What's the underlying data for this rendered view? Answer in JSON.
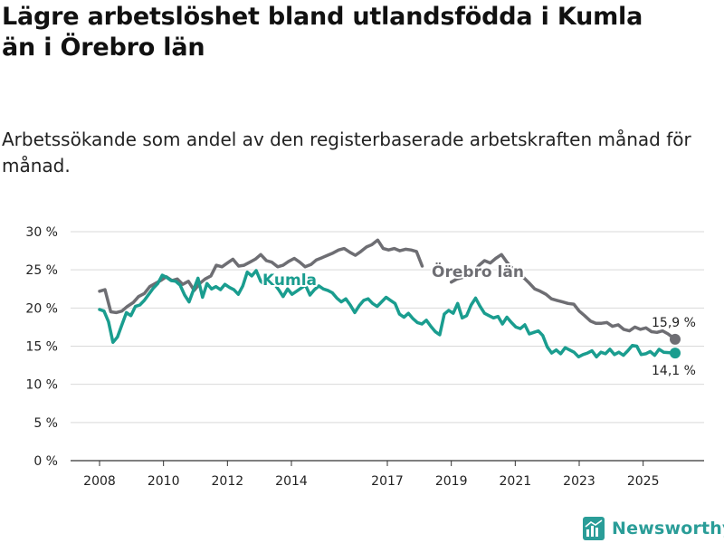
{
  "header": {
    "title": "Lägre arbetslöshet bland utlandsfödda i Kumla\nän i Örebro län",
    "subtitle": "Arbetssökande som andel av den registerbaserade arbetskraften månad för månad."
  },
  "brand": {
    "name": "Newsworthy",
    "color": "#2a9d98"
  },
  "chart_data": {
    "type": "line",
    "title": "Lägre arbetslöshet bland utlandsfödda i Kumla än i Örebro län",
    "subtitle": "Arbetssökande som andel av den registerbaserade arbetskraften månad för månad.",
    "xlabel": "",
    "ylabel": "",
    "xlim": [
      2008,
      2026.8
    ],
    "ylim": [
      0,
      30
    ],
    "grid": true,
    "y_ticks": [
      0,
      5,
      10,
      15,
      20,
      25,
      30
    ],
    "y_tick_labels": [
      "0 %",
      "5 %",
      "10 %",
      "15 %",
      "20 %",
      "25 %",
      "30 %"
    ],
    "x_ticks": [
      2008,
      2010,
      2012,
      2014,
      2017,
      2019,
      2021,
      2023,
      2025
    ],
    "x_tick_labels": [
      "2008",
      "2010",
      "2012",
      "2014",
      "2017",
      "2019",
      "2021",
      "2023",
      "2025"
    ],
    "series": [
      {
        "name": "Örebro län",
        "color": "#6e6e73",
        "end_label": "15,9 %",
        "points": [
          [
            2008.0,
            22.2
          ],
          [
            2008.17,
            22.4
          ],
          [
            2008.35,
            19.5
          ],
          [
            2008.52,
            19.4
          ],
          [
            2008.7,
            19.6
          ],
          [
            2008.87,
            20.2
          ],
          [
            2009.05,
            20.7
          ],
          [
            2009.22,
            21.5
          ],
          [
            2009.4,
            21.9
          ],
          [
            2009.57,
            22.8
          ],
          [
            2009.74,
            23.2
          ],
          [
            2009.91,
            23.6
          ],
          [
            2010.09,
            24.1
          ],
          [
            2010.26,
            23.6
          ],
          [
            2010.43,
            23.8
          ],
          [
            2010.6,
            23.1
          ],
          [
            2010.78,
            23.5
          ],
          [
            2010.96,
            22.3
          ],
          [
            2011.13,
            23.2
          ],
          [
            2011.3,
            23.8
          ],
          [
            2011.48,
            24.2
          ],
          [
            2011.65,
            25.6
          ],
          [
            2011.83,
            25.4
          ],
          [
            2012.0,
            25.9
          ],
          [
            2012.17,
            26.4
          ],
          [
            2012.35,
            25.5
          ],
          [
            2012.52,
            25.6
          ],
          [
            2012.7,
            26.0
          ],
          [
            2012.87,
            26.4
          ],
          [
            2013.04,
            27.0
          ],
          [
            2013.22,
            26.2
          ],
          [
            2013.39,
            26.0
          ],
          [
            2013.57,
            25.4
          ],
          [
            2013.74,
            25.6
          ],
          [
            2013.91,
            26.1
          ],
          [
            2014.09,
            26.5
          ],
          [
            2014.26,
            26.0
          ],
          [
            2014.43,
            25.4
          ],
          [
            2014.61,
            25.7
          ],
          [
            2014.78,
            26.3
          ],
          [
            2014.96,
            26.6
          ],
          [
            2015.13,
            26.9
          ],
          [
            2015.3,
            27.2
          ],
          [
            2015.48,
            27.6
          ],
          [
            2015.65,
            27.8
          ],
          [
            2015.83,
            27.3
          ],
          [
            2016.0,
            26.9
          ],
          [
            2016.17,
            27.4
          ],
          [
            2016.35,
            28.0
          ],
          [
            2016.52,
            28.3
          ],
          [
            2016.7,
            28.9
          ],
          [
            2016.87,
            27.8
          ],
          [
            2017.04,
            27.6
          ],
          [
            2017.22,
            27.8
          ],
          [
            2017.39,
            27.5
          ],
          [
            2017.57,
            27.7
          ],
          [
            2017.74,
            27.6
          ],
          [
            2017.91,
            27.4
          ],
          [
            2018.09,
            25.5
          ]
        ],
        "points_after_label": [
          [
            2019.0,
            23.4
          ],
          [
            2019.17,
            23.8
          ],
          [
            2019.35,
            24.0
          ],
          [
            2019.52,
            24.6
          ],
          [
            2019.7,
            24.8
          ],
          [
            2019.87,
            25.6
          ],
          [
            2020.04,
            26.2
          ],
          [
            2020.22,
            25.9
          ],
          [
            2020.39,
            26.5
          ],
          [
            2020.57,
            27.0
          ],
          [
            2020.74,
            26.0
          ],
          [
            2020.91,
            25.2
          ],
          [
            2021.09,
            24.5
          ],
          [
            2021.26,
            24.0
          ],
          [
            2021.43,
            23.3
          ],
          [
            2021.61,
            22.5
          ],
          [
            2021.78,
            22.2
          ],
          [
            2021.96,
            21.8
          ],
          [
            2022.13,
            21.2
          ],
          [
            2022.3,
            21.0
          ],
          [
            2022.48,
            20.8
          ],
          [
            2022.65,
            20.6
          ],
          [
            2022.83,
            20.5
          ],
          [
            2023.0,
            19.6
          ],
          [
            2023.17,
            19.0
          ],
          [
            2023.35,
            18.3
          ],
          [
            2023.52,
            18.0
          ],
          [
            2023.7,
            18.0
          ],
          [
            2023.87,
            18.1
          ],
          [
            2024.04,
            17.6
          ],
          [
            2024.22,
            17.8
          ],
          [
            2024.39,
            17.2
          ],
          [
            2024.57,
            17.0
          ],
          [
            2024.74,
            17.5
          ],
          [
            2024.91,
            17.2
          ],
          [
            2025.09,
            17.4
          ],
          [
            2025.26,
            16.9
          ],
          [
            2025.43,
            16.8
          ],
          [
            2025.61,
            17.0
          ],
          [
            2025.78,
            16.6
          ],
          [
            2026.0,
            15.9
          ]
        ]
      },
      {
        "name": "Kumla",
        "color": "#1a9d8f",
        "end_label": "14,1 %",
        "points": [
          [
            2008.0,
            19.8
          ],
          [
            2008.14,
            19.6
          ],
          [
            2008.28,
            18.2
          ],
          [
            2008.42,
            15.5
          ],
          [
            2008.56,
            16.2
          ],
          [
            2008.7,
            17.8
          ],
          [
            2008.84,
            19.4
          ],
          [
            2008.98,
            19.0
          ],
          [
            2009.12,
            20.2
          ],
          [
            2009.26,
            20.4
          ],
          [
            2009.4,
            21.0
          ],
          [
            2009.54,
            21.8
          ],
          [
            2009.68,
            22.6
          ],
          [
            2009.82,
            23.2
          ],
          [
            2009.96,
            24.3
          ],
          [
            2010.1,
            24.0
          ],
          [
            2010.24,
            23.6
          ],
          [
            2010.38,
            23.5
          ],
          [
            2010.52,
            23.0
          ],
          [
            2010.66,
            21.7
          ],
          [
            2010.8,
            20.8
          ],
          [
            2010.94,
            22.4
          ],
          [
            2011.08,
            23.9
          ],
          [
            2011.22,
            21.4
          ],
          [
            2011.36,
            23.2
          ],
          [
            2011.5,
            22.5
          ],
          [
            2011.64,
            22.8
          ],
          [
            2011.78,
            22.4
          ],
          [
            2011.92,
            23.1
          ],
          [
            2012.06,
            22.7
          ],
          [
            2012.2,
            22.4
          ],
          [
            2012.34,
            21.8
          ],
          [
            2012.48,
            22.9
          ],
          [
            2012.62,
            24.7
          ],
          [
            2012.76,
            24.2
          ],
          [
            2012.9,
            24.9
          ],
          [
            2013.04,
            23.5
          ],
          [
            2013.18,
            23.0
          ],
          [
            2013.32,
            23.7
          ],
          [
            2013.46,
            23.2
          ],
          [
            2013.6,
            22.4
          ],
          [
            2013.74,
            21.5
          ],
          [
            2013.88,
            22.5
          ],
          [
            2014.02,
            21.8
          ],
          [
            2014.16,
            22.2
          ],
          [
            2014.3,
            22.6
          ],
          [
            2014.44,
            23.0
          ],
          [
            2014.58,
            21.7
          ],
          [
            2014.72,
            22.4
          ],
          [
            2014.86,
            22.9
          ],
          [
            2015.0,
            22.5
          ],
          [
            2015.14,
            22.3
          ],
          [
            2015.28,
            22.0
          ],
          [
            2015.42,
            21.3
          ],
          [
            2015.56,
            20.8
          ],
          [
            2015.7,
            21.2
          ],
          [
            2015.84,
            20.4
          ],
          [
            2015.98,
            19.4
          ],
          [
            2016.12,
            20.3
          ],
          [
            2016.26,
            21.0
          ],
          [
            2016.4,
            21.2
          ],
          [
            2016.54,
            20.6
          ],
          [
            2016.68,
            20.2
          ],
          [
            2016.82,
            20.8
          ],
          [
            2016.96,
            21.4
          ],
          [
            2017.1,
            21.0
          ],
          [
            2017.24,
            20.6
          ],
          [
            2017.38,
            19.2
          ],
          [
            2017.52,
            18.8
          ],
          [
            2017.66,
            19.3
          ],
          [
            2017.8,
            18.6
          ],
          [
            2017.94,
            18.1
          ],
          [
            2018.08,
            17.9
          ],
          [
            2018.22,
            18.4
          ],
          [
            2018.36,
            17.6
          ],
          [
            2018.5,
            16.9
          ],
          [
            2018.64,
            16.5
          ],
          [
            2018.78,
            19.2
          ],
          [
            2018.92,
            19.7
          ],
          [
            2019.06,
            19.3
          ],
          [
            2019.2,
            20.6
          ],
          [
            2019.34,
            18.7
          ],
          [
            2019.48,
            19.0
          ],
          [
            2019.62,
            20.4
          ],
          [
            2019.76,
            21.3
          ],
          [
            2019.9,
            20.2
          ],
          [
            2020.04,
            19.3
          ],
          [
            2020.18,
            19.0
          ],
          [
            2020.32,
            18.7
          ],
          [
            2020.46,
            18.9
          ],
          [
            2020.6,
            17.9
          ],
          [
            2020.74,
            18.8
          ],
          [
            2020.88,
            18.1
          ],
          [
            2021.02,
            17.5
          ],
          [
            2021.16,
            17.3
          ],
          [
            2021.3,
            17.8
          ],
          [
            2021.44,
            16.6
          ],
          [
            2021.58,
            16.8
          ],
          [
            2021.72,
            17.0
          ],
          [
            2021.86,
            16.4
          ],
          [
            2022.0,
            14.9
          ],
          [
            2022.14,
            14.1
          ],
          [
            2022.28,
            14.5
          ],
          [
            2022.42,
            14.0
          ],
          [
            2022.56,
            14.8
          ],
          [
            2022.7,
            14.5
          ],
          [
            2022.84,
            14.2
          ],
          [
            2022.98,
            13.6
          ],
          [
            2023.12,
            13.9
          ],
          [
            2023.26,
            14.1
          ],
          [
            2023.4,
            14.4
          ],
          [
            2023.54,
            13.6
          ],
          [
            2023.68,
            14.2
          ],
          [
            2023.82,
            14.0
          ],
          [
            2023.96,
            14.6
          ],
          [
            2024.1,
            13.9
          ],
          [
            2024.24,
            14.2
          ],
          [
            2024.38,
            13.8
          ],
          [
            2024.52,
            14.4
          ],
          [
            2024.66,
            15.1
          ],
          [
            2024.8,
            15.0
          ],
          [
            2024.94,
            13.9
          ],
          [
            2025.08,
            14.0
          ],
          [
            2025.22,
            14.3
          ],
          [
            2025.36,
            13.8
          ],
          [
            2025.5,
            14.6
          ],
          [
            2025.64,
            14.2
          ],
          [
            2026.0,
            14.1
          ]
        ]
      }
    ]
  }
}
